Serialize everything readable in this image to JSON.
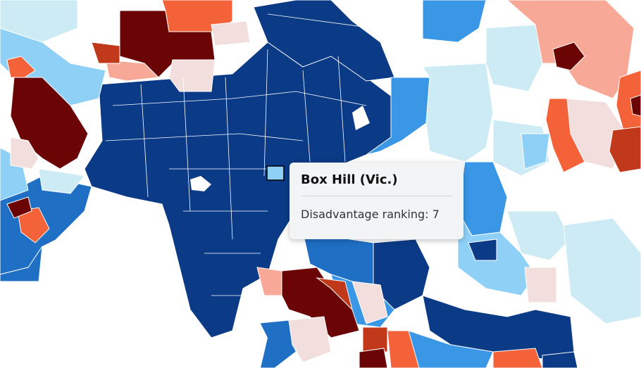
{
  "tooltip": {
    "title": "Box Hill (Vic.)",
    "metric_label": "Disadvantage ranking:",
    "metric_value": "7"
  },
  "colors": {
    "water": "#ffffff",
    "navy": "#0b3a86",
    "blue": "#1f6fc5",
    "mid_blue": "#3a97e6",
    "light_blue": "#8fd0f7",
    "pale_blue": "#cdebf5",
    "pale_pink": "#f3dede",
    "salmon": "#f7a896",
    "orange_red": "#f4623a",
    "red": "#c0391b",
    "dark_red": "#6b0505",
    "highlight": "#8fd0f7",
    "border": "#ffffff"
  }
}
